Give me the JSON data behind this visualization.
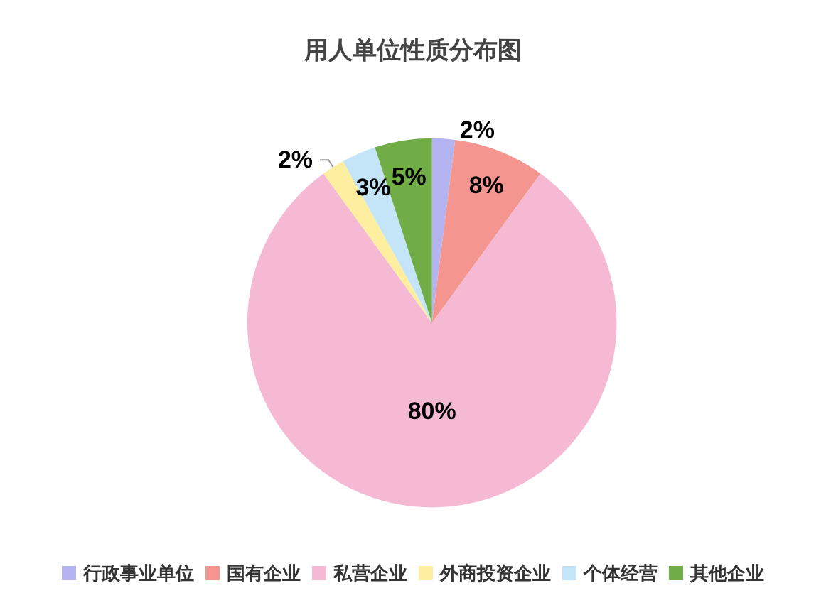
{
  "chart_data": {
    "type": "pie",
    "title": "用人单位性质分布图",
    "categories": [
      "行政事业单位",
      "国有企业",
      "私营企业",
      "外商投资企业",
      "个体经营",
      "其他企业"
    ],
    "values": [
      2,
      8,
      80,
      2,
      3,
      5
    ],
    "colors": [
      "#b4b4f0",
      "#f5958f",
      "#f6b9d4",
      "#fdeea0",
      "#c3e5f7",
      "#70ad47"
    ],
    "value_labels": [
      "2%",
      "8%",
      "80%",
      "2%",
      "3%",
      "5%"
    ],
    "legend": "bottom"
  }
}
